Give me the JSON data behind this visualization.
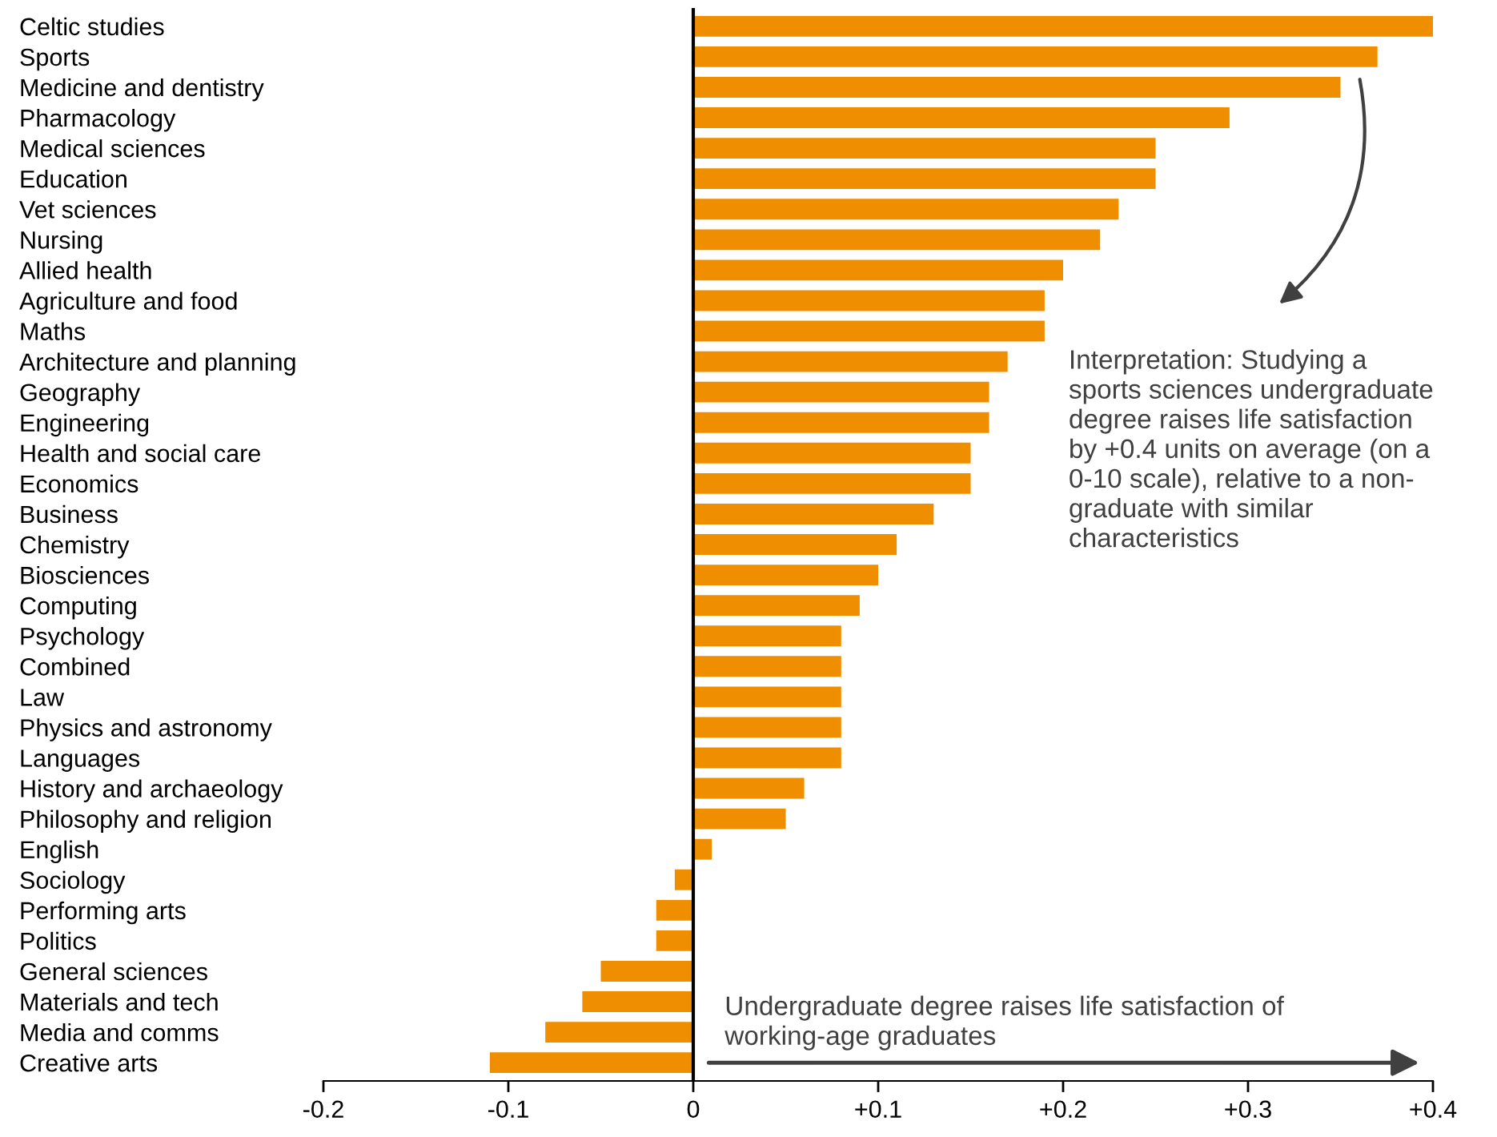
{
  "chart_data": {
    "type": "bar",
    "orientation": "horizontal",
    "color": "#ef8f00",
    "categories": [
      "Celtic studies",
      "Sports",
      "Medicine and dentistry",
      "Pharmacology",
      "Medical sciences",
      "Education",
      "Vet sciences",
      "Nursing",
      "Allied health",
      "Agriculture and food",
      "Maths",
      "Architecture and planning",
      "Geography",
      "Engineering",
      "Health and social care",
      "Economics",
      "Business",
      "Chemistry",
      "Biosciences",
      "Computing",
      "Psychology",
      "Combined",
      "Law",
      "Physics and astronomy",
      "Languages",
      "History and archaeology",
      "Philosophy and religion",
      "English",
      "Sociology",
      "Performing arts",
      "Politics",
      "General sciences",
      "Materials and tech",
      "Media and comms",
      "Creative arts"
    ],
    "values": [
      0.4,
      0.37,
      0.35,
      0.29,
      0.25,
      0.25,
      0.23,
      0.22,
      0.2,
      0.19,
      0.19,
      0.17,
      0.16,
      0.16,
      0.15,
      0.15,
      0.13,
      0.11,
      0.1,
      0.09,
      0.08,
      0.08,
      0.08,
      0.08,
      0.08,
      0.06,
      0.05,
      0.01,
      -0.01,
      -0.02,
      -0.02,
      -0.05,
      -0.06,
      -0.08,
      -0.11
    ],
    "xlim": [
      -0.2,
      0.4
    ],
    "xticks": [
      {
        "value": -0.2,
        "label": "-0.2"
      },
      {
        "value": -0.1,
        "label": "-0.1"
      },
      0,
      {
        "value": 0.1,
        "label": "+0.1"
      },
      {
        "value": 0.2,
        "label": "+0.2"
      },
      {
        "value": 0.3,
        "label": "+0.3"
      },
      {
        "value": 0.4,
        "label": "+0.4"
      }
    ],
    "ref_lines": [
      {
        "axis": "x",
        "value": 0,
        "color": "#000000"
      }
    ],
    "grid": false,
    "legend": false,
    "annotations": [
      "Interpretation: Studying a\nsports sciences undergraduate\ndegree raises life satisfaction\nby +0.4 units on average (on a\n0-10 scale), relative to a non-\ngraduate with similar\ncharacteristics",
      "Undergraduate degree raises life satisfaction of\nworking-age graduates"
    ]
  }
}
